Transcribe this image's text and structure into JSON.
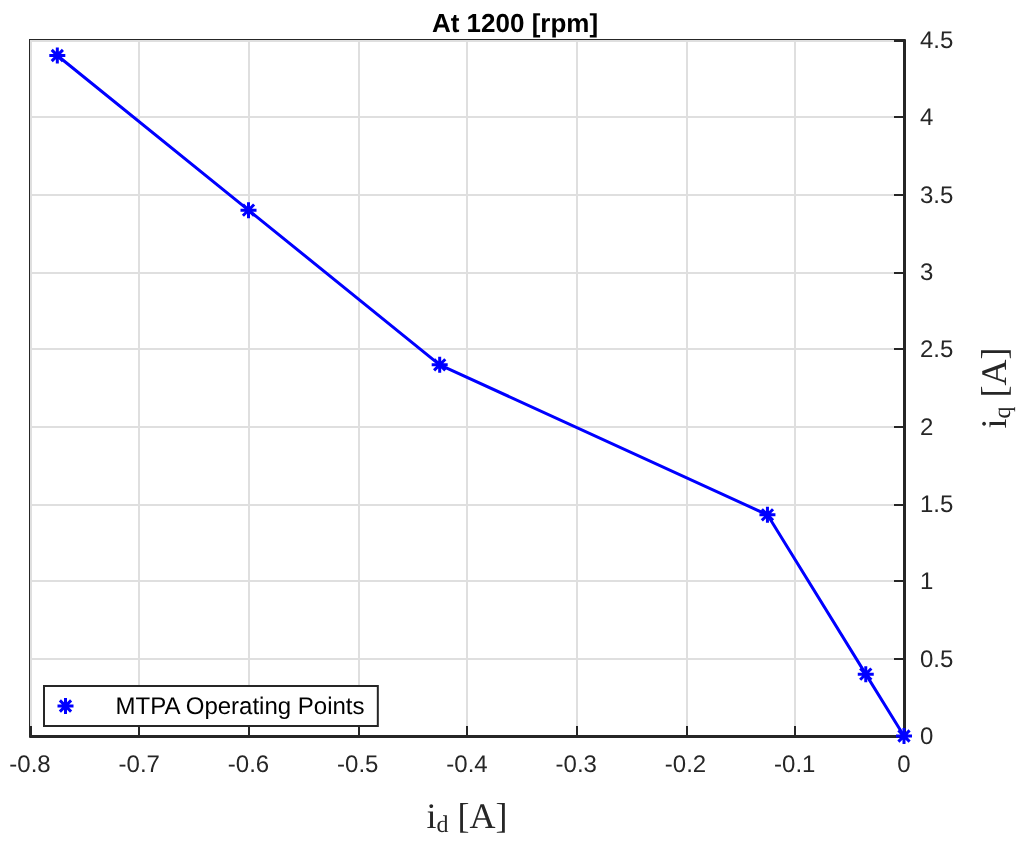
{
  "chart_data": {
    "type": "line",
    "title": "At 1200 [rpm]",
    "xlabel": "i$_{d}$ [A]",
    "ylabel": "i$_{q}$ [A]",
    "x": [
      -0.775,
      -0.6,
      -0.425,
      -0.125,
      -0.035,
      0
    ],
    "series": [
      {
        "name": "MTPA Operating Points",
        "color": "#0000ff",
        "values": [
          4.4,
          3.4,
          2.4,
          1.43,
          0.4,
          0
        ]
      }
    ],
    "xlim": [
      -0.8,
      0
    ],
    "xticks": [
      -0.8,
      -0.7,
      -0.6,
      -0.5,
      -0.4,
      -0.3,
      -0.2,
      -0.1,
      0
    ],
    "ylim": [
      0,
      4.5
    ],
    "yticks": [
      0,
      0.5,
      1,
      1.5,
      2,
      2.5,
      3,
      3.5,
      4,
      4.5
    ],
    "grid": true,
    "legend": "bottom left",
    "marker": "cross",
    "line_style": "solid"
  }
}
